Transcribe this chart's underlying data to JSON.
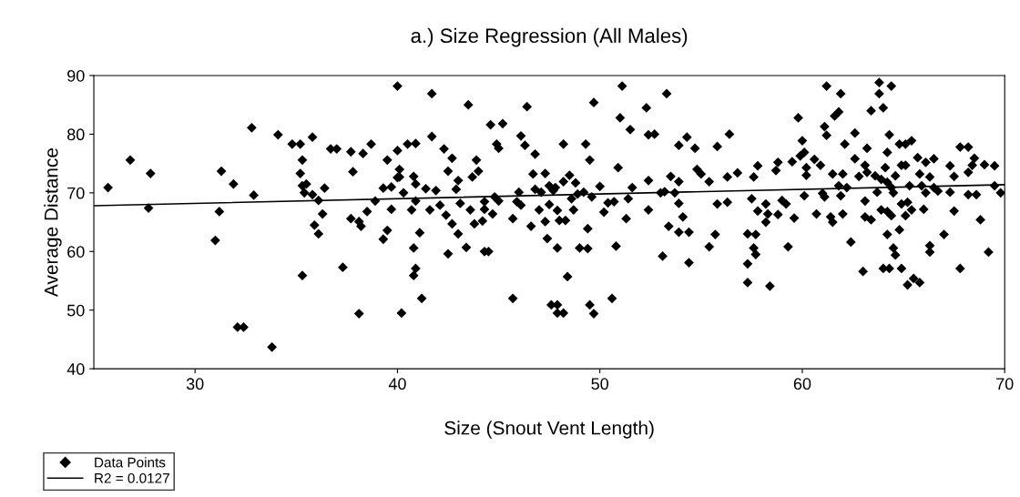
{
  "chart_data": {
    "type": "scatter",
    "title": "a.) Size Regression (All Males)",
    "xlabel": "Size (Snout Vent Length)",
    "ylabel": "Average Distance",
    "xlim": [
      25,
      70
    ],
    "xticks": [
      30,
      40,
      50,
      60,
      70
    ],
    "ylim": [
      40,
      90
    ],
    "yticks": [
      40,
      50,
      60,
      70,
      80,
      90
    ],
    "grid": false,
    "legend": "bottom left",
    "series": [
      {
        "name": "Data Points",
        "color": "#000000",
        "marker": "diamond",
        "x": [
          25.7,
          26.8,
          27.8,
          27.7,
          31.3,
          31.2,
          31.0,
          31.9,
          32.1,
          32.4,
          32.8,
          32.9,
          33.8,
          34.1,
          34.8,
          35.2,
          35.8,
          35.3,
          35.2,
          35.3,
          35.5,
          35.4,
          35.8,
          36.1,
          36.4,
          36.3,
          35.9,
          36.1,
          35.3,
          36.7,
          37.0,
          37.7,
          38.3,
          38.7,
          37.8,
          37.3,
          38.1,
          37.7,
          38.1,
          38.2,
          38.5,
          38.9,
          39.3,
          39.5,
          39.5,
          39.3,
          39.7,
          39.7,
          40.0,
          40.0,
          40.1,
          40.0,
          40.2,
          41.7,
          43.5,
          46.4,
          49.7,
          51.1,
          53.3,
          51.0,
          51.5,
          52.3,
          52.4,
          52.7,
          44.6,
          45.2,
          41.7,
          40.5,
          40.9,
          42.3,
          42.7,
          44.9,
          45.0,
          46.1,
          46.3,
          46.8,
          48.2,
          49.3,
          49.5,
          53.9,
          54.3,
          54.7,
          54.8,
          40.1,
          40.8,
          40.9,
          40.3,
          41.4,
          41.9,
          42.5,
          43.0,
          42.9,
          43.7,
          43.9,
          44.0,
          40.9,
          40.7,
          41.6,
          42.1,
          42.4,
          43.1,
          42.7,
          43.0,
          41.1,
          40.8,
          40.9,
          40.8,
          41.2,
          42.5,
          43.4,
          43.6,
          43.8,
          44.2,
          44.3,
          44.3,
          44.7,
          44.8,
          45.0,
          44.3,
          44.5,
          45.7,
          45.7,
          45.9,
          46.0,
          46.1,
          46.6,
          46.7,
          46.8,
          47.0,
          47.1,
          47.3,
          47.3,
          47.4,
          47.5,
          47.7,
          47.8,
          47.5,
          47.9,
          48.0,
          48.3,
          48.2,
          48.5,
          48.8,
          48.6,
          48.7,
          48.9,
          49.2,
          49.6,
          49.4,
          47.9,
          49.0,
          49.4,
          48.4,
          47.6,
          47.9,
          47.9,
          48.2,
          49.5,
          49.7,
          50.0,
          50.2,
          50.4,
          50.7,
          50.9,
          50.8,
          50.6,
          51.3,
          51.4,
          51.6,
          52.4,
          52.4,
          53.0,
          53.2,
          53.1,
          53.4,
          53.5,
          53.7,
          53.9,
          53.9,
          54.1,
          53.9,
          54.4,
          54.4,
          55.0,
          55.4,
          55.8,
          56.4,
          56.3,
          56.8,
          55.8,
          56.3,
          55.7,
          55.4,
          57.3,
          57.7,
          57.6,
          57.7,
          57.3,
          57.3,
          58.4,
          57.5,
          57.8,
          58.2,
          58.3,
          58.2,
          57.6,
          57.8,
          58.7,
          58.8,
          59.0,
          58.8,
          59.2,
          59.6,
          59.3,
          59.5,
          59.8,
          59.9,
          60.0,
          60.1,
          60.2,
          60.2,
          60.1,
          60.7,
          60.6,
          60.9,
          61.0,
          61.1,
          61.4,
          61.5,
          61.1,
          61.2,
          61.2,
          61.6,
          61.8,
          61.9,
          62.1,
          61.5,
          62.0,
          61.8,
          61.9,
          62.0,
          62.2,
          62.4,
          62.6,
          62.6,
          62.8,
          63.0,
          63.1,
          63.2,
          63.2,
          63.1,
          63.1,
          63.4,
          63.4,
          63.6,
          63.7,
          63.8,
          63.8,
          64.0,
          64.4,
          63.9,
          64.1,
          64.2,
          64.3,
          64.2,
          64.4,
          64.5,
          64.6,
          63.9,
          64.2,
          64.4,
          64.2,
          64.5,
          64.6,
          64.0,
          64.3,
          64.8,
          64.9,
          65.2,
          65.5,
          65.8,
          64.8,
          65.1,
          65.4,
          64.9,
          65.1,
          65.3,
          64.9,
          65.2,
          65.1,
          65.4,
          65.7,
          66.1,
          66.5,
          65.8,
          66.3,
          65.9,
          66.1,
          66.5,
          66.7,
          66.0,
          66.3,
          66.3,
          67.0,
          67.3,
          67.5,
          67.3,
          67.5,
          67.8,
          68.2,
          68.5,
          68.4,
          68.2,
          68.2,
          68.6,
          67.8,
          68.8,
          69.2,
          69.0,
          69.5,
          69.5,
          69.8
        ],
        "values": [
          70.9,
          75.6,
          73.3,
          67.4,
          73.7,
          66.8,
          61.9,
          71.5,
          47.1,
          47.1,
          81.1,
          69.6,
          43.7,
          79.9,
          78.3,
          78.3,
          79.5,
          75.6,
          73.3,
          71.2,
          71.5,
          70.0,
          69.7,
          68.7,
          70.8,
          66.4,
          64.5,
          63.0,
          55.9,
          77.5,
          77.5,
          77.0,
          76.7,
          78.3,
          73.6,
          57.3,
          49.4,
          65.6,
          65.1,
          64.3,
          66.8,
          68.6,
          62.1,
          63.6,
          75.6,
          70.8,
          71.0,
          67.2,
          77.2,
          88.2,
          74.0,
          72.6,
          49.5,
          86.9,
          85.0,
          84.7,
          85.4,
          88.2,
          86.9,
          82.8,
          80.8,
          84.5,
          79.9,
          80.0,
          81.6,
          81.8,
          79.6,
          78.3,
          78.4,
          77.5,
          75.9,
          78.3,
          77.6,
          79.7,
          78.1,
          76.6,
          78.3,
          78.3,
          75.6,
          78.1,
          79.5,
          77.6,
          74.0,
          72.7,
          72.8,
          71.5,
          70.0,
          70.7,
          70.4,
          73.7,
          72.1,
          70.6,
          72.7,
          75.6,
          73.7,
          68.6,
          67.1,
          67.1,
          67.9,
          66.2,
          68.2,
          64.7,
          63.0,
          63.2,
          60.6,
          57.1,
          55.9,
          52.0,
          59.6,
          60.7,
          67.1,
          64.7,
          65.2,
          67.2,
          68.5,
          66.4,
          69.3,
          68.6,
          60.0,
          60.0,
          65.6,
          52.0,
          68.5,
          70.1,
          67.9,
          64.3,
          73.2,
          70.6,
          67.1,
          70.1,
          73.3,
          65.1,
          62.2,
          71.2,
          70.4,
          70.9,
          68.0,
          67.0,
          65.3,
          65.3,
          71.9,
          73.0,
          71.7,
          69.0,
          67.1,
          69.8,
          70.1,
          69.3,
          63.9,
          60.6,
          60.6,
          60.5,
          55.7,
          50.9,
          50.9,
          49.5,
          49.5,
          50.9,
          49.4,
          71.1,
          66.7,
          68.3,
          68.5,
          74.3,
          60.9,
          52.0,
          65.6,
          69.0,
          70.9,
          72.1,
          67.1,
          70.0,
          70.2,
          59.2,
          64.3,
          72.8,
          70.0,
          71.9,
          68.2,
          65.9,
          63.3,
          63.3,
          58.1,
          73.2,
          71.9,
          77.9,
          80.0,
          72.7,
          73.4,
          68.1,
          68.4,
          62.9,
          60.8,
          63.0,
          62.9,
          60.6,
          59.5,
          57.9,
          54.7,
          54.1,
          69.0,
          66.9,
          68.1,
          66.4,
          65.0,
          72.7,
          74.6,
          73.8,
          75.2,
          68.7,
          66.3,
          68.1,
          65.7,
          60.8,
          75.3,
          82.8,
          76.3,
          78.9,
          76.9,
          74.3,
          73.0,
          69.5,
          66.4,
          75.7,
          74.7,
          69.9,
          69.3,
          65.9,
          65.0,
          81.3,
          79.8,
          88.2,
          83.1,
          83.8,
          86.9,
          78.3,
          73.2,
          73.2,
          71.2,
          69.5,
          66.4,
          70.9,
          61.6,
          80.2,
          75.8,
          72.8,
          56.6,
          74.7,
          77.6,
          73.5,
          68.6,
          65.9,
          65.4,
          84.0,
          72.9,
          70.1,
          88.8,
          86.9,
          84.5,
          88.2,
          72.3,
          74.3,
          76.9,
          79.9,
          71.8,
          70.9,
          70.0,
          72.9,
          67.1,
          66.8,
          66.1,
          62.9,
          60.6,
          59.4,
          57.1,
          57.1,
          63.7,
          57.1,
          54.3,
          55.4,
          54.7,
          78.3,
          78.3,
          78.9,
          74.7,
          74.7,
          71.2,
          68.1,
          68.4,
          66.1,
          67.1,
          76.0,
          75.2,
          75.8,
          73.2,
          72.7,
          71.2,
          70.0,
          70.9,
          70.3,
          67.2,
          61.0,
          59.9,
          62.9,
          74.6,
          72.8,
          70.1,
          66.9,
          77.8,
          77.8,
          75.9,
          74.7,
          73.5,
          69.7,
          69.7,
          57.1,
          65.4,
          59.9,
          74.8,
          74.6,
          71.2,
          70.0
        ]
      },
      {
        "name": "R2 = 0.0127",
        "type": "line",
        "color": "#000000",
        "line_style": "solid",
        "x": [
          25,
          70
        ],
        "values": [
          67.8,
          71.4
        ]
      }
    ]
  }
}
